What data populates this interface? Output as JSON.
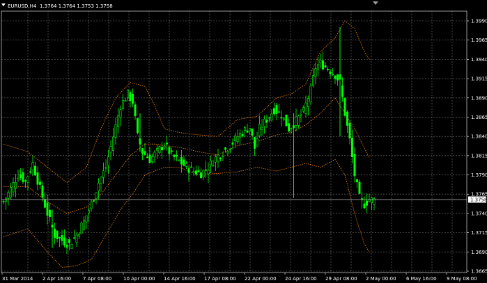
{
  "header": {
    "symbol": "EURUSD,H4",
    "quote": "1.3764 1.3764 1.3753 1.3758",
    "menu_icon": "triangle-down-icon",
    "scroll_marker_icon": "triangle-down-icon"
  },
  "colors": {
    "background": "#000000",
    "grid": "#7a7a7a",
    "candle": "#00ff00",
    "band": "#ff8c00",
    "current_price_line": "#bfbfbf",
    "axis": "#ffffff"
  },
  "chart_data": {
    "type": "line",
    "series_kind": "candlestick",
    "symbol": "EURUSD",
    "timeframe": "H4",
    "y_axis": {
      "min": 1.3665,
      "max": 1.399,
      "ticks": [
        "1.3990",
        "1.3965",
        "1.3940",
        "1.3915",
        "1.3890",
        "1.3865",
        "1.3840",
        "1.3815",
        "1.3790",
        "1.3765",
        "1.3740",
        "1.3715",
        "1.3690",
        "1.3665"
      ]
    },
    "x_axis": {
      "ticks": [
        "31 Mar 2014",
        "2 Apr 16:00",
        "7 Apr 08:00",
        "10 Apr 00:00",
        "14 Apr 16:00",
        "17 Apr 08:00",
        "22 Apr 00:00",
        "24 Apr 16:00",
        "29 Apr 08:00",
        "2 May 00:00",
        "6 May 16:00",
        "9 May 08:00"
      ]
    },
    "current_price": "1.3758",
    "grid": true,
    "indicator": "bands",
    "close_path": [
      [
        0,
        1.3755
      ],
      [
        3,
        1.3772
      ],
      [
        6,
        1.379
      ],
      [
        9,
        1.3782
      ],
      [
        12,
        1.3805
      ],
      [
        15,
        1.3772
      ],
      [
        18,
        1.374
      ],
      [
        21,
        1.3712
      ],
      [
        24,
        1.3705
      ],
      [
        27,
        1.37
      ],
      [
        30,
        1.3712
      ],
      [
        33,
        1.373
      ],
      [
        36,
        1.3752
      ],
      [
        39,
        1.378
      ],
      [
        42,
        1.38
      ],
      [
        45,
        1.384
      ],
      [
        48,
        1.388
      ],
      [
        51,
        1.3895
      ],
      [
        53,
        1.3885
      ],
      [
        55,
        1.384
      ],
      [
        57,
        1.382
      ],
      [
        60,
        1.381
      ],
      [
        63,
        1.382
      ],
      [
        66,
        1.383
      ],
      [
        69,
        1.3815
      ],
      [
        72,
        1.3808
      ],
      [
        75,
        1.38
      ],
      [
        78,
        1.3795
      ],
      [
        81,
        1.3792
      ],
      [
        84,
        1.38
      ],
      [
        87,
        1.3812
      ],
      [
        90,
        1.382
      ],
      [
        93,
        1.3828
      ],
      [
        96,
        1.384
      ],
      [
        99,
        1.3848
      ],
      [
        101,
        1.3852
      ],
      [
        103,
        1.3825
      ],
      [
        105,
        1.385
      ],
      [
        108,
        1.3862
      ],
      [
        111,
        1.3875
      ],
      [
        114,
        1.3868
      ],
      [
        117,
        1.385
      ],
      [
        120,
        1.386
      ],
      [
        123,
        1.3872
      ],
      [
        126,
        1.39
      ],
      [
        128,
        1.393
      ],
      [
        130,
        1.3935
      ],
      [
        133,
        1.3928
      ],
      [
        136,
        1.392
      ],
      [
        138,
        1.391
      ],
      [
        140,
        1.387
      ],
      [
        142,
        1.3835
      ],
      [
        144,
        1.379
      ],
      [
        146,
        1.376
      ],
      [
        148,
        1.3752
      ],
      [
        150,
        1.3758
      ],
      [
        152,
        1.3757
      ]
    ],
    "spikes": [
      [
        119,
        1.376,
        1.387
      ],
      [
        138,
        1.384,
        1.3982
      ],
      [
        20,
        1.3695,
        1.3745
      ],
      [
        56,
        1.382,
        1.387
      ]
    ],
    "upper_band": [
      [
        0,
        1.383
      ],
      [
        10,
        1.382
      ],
      [
        18,
        1.38
      ],
      [
        26,
        1.378
      ],
      [
        34,
        1.38
      ],
      [
        40,
        1.385
      ],
      [
        46,
        1.389
      ],
      [
        52,
        1.391
      ],
      [
        58,
        1.3905
      ],
      [
        62,
        1.388
      ],
      [
        66,
        1.385
      ],
      [
        72,
        1.3845
      ],
      [
        80,
        1.3842
      ],
      [
        88,
        1.384
      ],
      [
        96,
        1.3862
      ],
      [
        104,
        1.3866
      ],
      [
        112,
        1.389
      ],
      [
        118,
        1.3895
      ],
      [
        124,
        1.3908
      ],
      [
        130,
        1.395
      ],
      [
        136,
        1.3968
      ],
      [
        140,
        1.399
      ],
      [
        144,
        1.398
      ],
      [
        148,
        1.395
      ],
      [
        150,
        1.394
      ]
    ],
    "middle_band": [
      [
        0,
        1.3775
      ],
      [
        10,
        1.3775
      ],
      [
        18,
        1.3755
      ],
      [
        26,
        1.374
      ],
      [
        34,
        1.3748
      ],
      [
        40,
        1.3765
      ],
      [
        46,
        1.379
      ],
      [
        52,
        1.3815
      ],
      [
        58,
        1.383
      ],
      [
        62,
        1.383
      ],
      [
        66,
        1.3828
      ],
      [
        72,
        1.3826
      ],
      [
        80,
        1.382
      ],
      [
        88,
        1.3816
      ],
      [
        96,
        1.3828
      ],
      [
        104,
        1.3833
      ],
      [
        112,
        1.3842
      ],
      [
        118,
        1.3845
      ],
      [
        124,
        1.3855
      ],
      [
        130,
        1.387
      ],
      [
        136,
        1.389
      ],
      [
        140,
        1.387
      ],
      [
        144,
        1.385
      ],
      [
        148,
        1.3825
      ],
      [
        150,
        1.3812
      ]
    ],
    "lower_band": [
      [
        0,
        1.371
      ],
      [
        10,
        1.372
      ],
      [
        18,
        1.369
      ],
      [
        24,
        1.367
      ],
      [
        30,
        1.3672
      ],
      [
        36,
        1.368
      ],
      [
        42,
        1.3712
      ],
      [
        48,
        1.3745
      ],
      [
        54,
        1.377
      ],
      [
        58,
        1.379
      ],
      [
        62,
        1.3795
      ],
      [
        66,
        1.38
      ],
      [
        72,
        1.38
      ],
      [
        80,
        1.379
      ],
      [
        88,
        1.3792
      ],
      [
        96,
        1.3794
      ],
      [
        104,
        1.38
      ],
      [
        112,
        1.3795
      ],
      [
        118,
        1.38
      ],
      [
        124,
        1.3805
      ],
      [
        130,
        1.38
      ],
      [
        136,
        1.381
      ],
      [
        140,
        1.379
      ],
      [
        144,
        1.374
      ],
      [
        148,
        1.37
      ],
      [
        150,
        1.369
      ]
    ]
  }
}
